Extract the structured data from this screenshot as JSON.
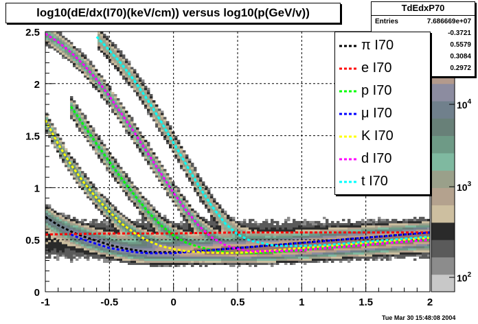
{
  "title": "log10(dE/dx(I70)(keV/cm)) versus log10(p(GeV/v))",
  "stats": {
    "name": "TdEdxP70",
    "rows": [
      {
        "label": "Entries",
        "value": "7.686669e+07"
      },
      {
        "label": "",
        "value": "-0.3721"
      },
      {
        "label": "",
        "value": "0.5579"
      },
      {
        "label": "",
        "value": "0.3084"
      },
      {
        "label": "",
        "value": "0.2972"
      }
    ]
  },
  "datestamp": "Tue Mar 30 15:48:08 2004",
  "chart_data": {
    "type": "heatmap",
    "title": "log10(dE/dx(I70)(keV/cm)) versus log10(p(GeV/v))",
    "xlabel": "",
    "ylabel": "",
    "xlim": [
      -1,
      2
    ],
    "ylim": [
      0,
      2.5
    ],
    "x_ticks": [
      "-1",
      "-0.5",
      "0",
      "0.5",
      "1",
      "1.5",
      "2"
    ],
    "y_ticks": [
      "0",
      "0.5",
      "1",
      "1.5",
      "2",
      "2.5"
    ],
    "grid": true,
    "z_scale": "log",
    "z_ticks": [
      "10^2",
      "10^3",
      "10^4"
    ],
    "palette": [
      "#c8c8c8",
      "#8c8c8c",
      "#5a5a5a",
      "#2a2a2a",
      "#cdbfa0",
      "#b4a28e",
      "#9aa08a",
      "#7fb9a0",
      "#6e9a86",
      "#688078",
      "#70808c",
      "#8c8ca0",
      "#b39a8c",
      "#c8a888",
      "#9a7070"
    ],
    "legend_position": "top-right",
    "series": [
      {
        "name": "π I70",
        "color": "#000000",
        "x": [
          -1,
          -0.9,
          -0.8,
          -0.7,
          -0.6,
          -0.5,
          -0.4,
          -0.3,
          -0.2,
          -0.1,
          0,
          0.2,
          0.4,
          0.6,
          0.8,
          1.0,
          1.2,
          1.4,
          1.6,
          1.8,
          2.0
        ],
        "y": [
          0.72,
          0.64,
          0.58,
          0.53,
          0.49,
          0.45,
          0.42,
          0.4,
          0.38,
          0.38,
          0.38,
          0.39,
          0.41,
          0.43,
          0.45,
          0.47,
          0.49,
          0.51,
          0.53,
          0.55,
          0.57
        ]
      },
      {
        "name": "e I70",
        "color": "#ff0000",
        "x": [
          -1,
          -0.5,
          0,
          0.5,
          1.0,
          1.5,
          2.0
        ],
        "y": [
          0.55,
          0.56,
          0.56,
          0.57,
          0.57,
          0.57,
          0.57
        ]
      },
      {
        "name": "p I70",
        "color": "#00ff00",
        "x": [
          -0.8,
          -0.7,
          -0.6,
          -0.5,
          -0.4,
          -0.3,
          -0.2,
          -0.1,
          0,
          0.1,
          0.2,
          0.3,
          0.4,
          0.5,
          0.6,
          0.8,
          1.0,
          1.2,
          1.4,
          1.6,
          1.8,
          2.0
        ],
        "y": [
          1.78,
          1.6,
          1.42,
          1.25,
          1.08,
          0.92,
          0.77,
          0.64,
          0.54,
          0.47,
          0.43,
          0.4,
          0.38,
          0.37,
          0.37,
          0.38,
          0.4,
          0.42,
          0.44,
          0.46,
          0.48,
          0.5
        ]
      },
      {
        "name": "μ I70",
        "color": "#0000ff",
        "x": [
          -0.8,
          -0.7,
          -0.6,
          -0.5,
          -0.4,
          -0.3,
          -0.2,
          -0.1,
          0,
          0.2,
          0.4,
          0.6,
          0.8,
          1.0,
          1.2,
          1.4,
          1.6,
          1.8,
          2.0
        ],
        "y": [
          0.55,
          0.5,
          0.46,
          0.42,
          0.4,
          0.38,
          0.37,
          0.37,
          0.37,
          0.39,
          0.41,
          0.43,
          0.45,
          0.47,
          0.49,
          0.51,
          0.53,
          0.55,
          0.57
        ]
      },
      {
        "name": "K I70",
        "color": "#ffff00",
        "x": [
          -1,
          -0.9,
          -0.8,
          -0.7,
          -0.6,
          -0.5,
          -0.4,
          -0.3,
          -0.2,
          -0.1,
          0,
          0.1,
          0.2,
          0.4,
          0.6,
          0.8,
          1.0,
          1.2,
          1.4,
          1.6,
          1.8,
          2.0
        ],
        "y": [
          1.65,
          1.42,
          1.22,
          1.05,
          0.9,
          0.77,
          0.65,
          0.56,
          0.49,
          0.44,
          0.41,
          0.39,
          0.38,
          0.37,
          0.38,
          0.4,
          0.42,
          0.44,
          0.46,
          0.48,
          0.5,
          0.52
        ]
      },
      {
        "name": "d I70",
        "color": "#ff00ff",
        "x": [
          -1,
          -0.9,
          -0.8,
          -0.7,
          -0.6,
          -0.5,
          -0.4,
          -0.3,
          -0.2,
          -0.1,
          0,
          0.1,
          0.2,
          0.3,
          0.4,
          0.5,
          0.6,
          0.8,
          1.0,
          1.2,
          1.4,
          1.6,
          1.8,
          2.0
        ],
        "y": [
          2.48,
          2.4,
          2.3,
          2.18,
          2.04,
          1.88,
          1.7,
          1.52,
          1.33,
          1.14,
          0.95,
          0.78,
          0.63,
          0.52,
          0.45,
          0.41,
          0.39,
          0.39,
          0.4,
          0.42,
          0.44,
          0.46,
          0.48,
          0.5
        ]
      },
      {
        "name": "t I70",
        "color": "#00ffff",
        "x": [
          -0.6,
          -0.5,
          -0.4,
          -0.3,
          -0.2,
          -0.1,
          0,
          0.1,
          0.2,
          0.3,
          0.4,
          0.5,
          0.6,
          0.8,
          1.0,
          1.2,
          1.4,
          1.6,
          1.8,
          2.0
        ],
        "y": [
          2.45,
          2.32,
          2.18,
          2.02,
          1.84,
          1.64,
          1.43,
          1.22,
          1.01,
          0.82,
          0.66,
          0.55,
          0.49,
          0.44,
          0.44,
          0.45,
          0.47,
          0.49,
          0.51,
          0.53
        ]
      }
    ]
  }
}
